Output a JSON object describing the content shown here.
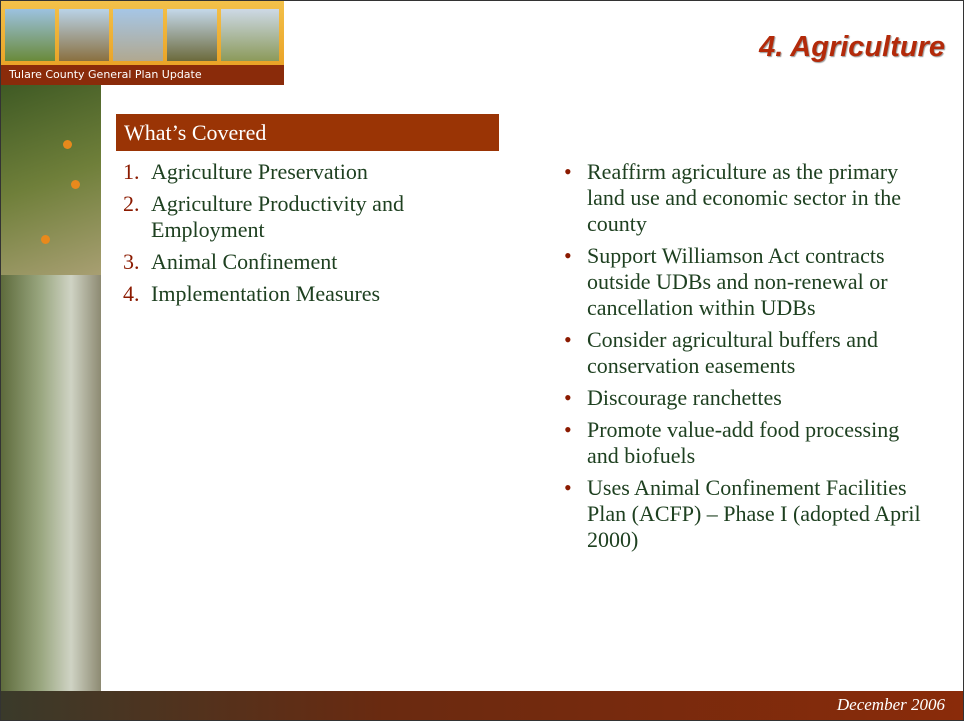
{
  "header": {
    "banner_text": "Tulare County General Plan Update",
    "title": "4. Agriculture"
  },
  "covered": {
    "heading": "What’s Covered",
    "items": [
      {
        "number": "1.",
        "text": "Agriculture Preservation"
      },
      {
        "number": "2.",
        "text": "Agriculture Productivity and Employment"
      },
      {
        "number": "3.",
        "text": "Animal Confinement"
      },
      {
        "number": "4.",
        "text": "Implementation Measures"
      }
    ]
  },
  "bullets": [
    "Reaffirm agriculture as the primary land use and economic sector in the county",
    "Support Williamson Act contracts outside UDBs and non-renewal or cancellation within UDBs",
    "Consider agricultural buffers and conservation easements",
    "Discourage ranchettes",
    "Promote value-add food processing and biofuels",
    "Uses Animal Confinement Facilities Plan (ACFP) – Phase I (adopted April 2000)"
  ],
  "footer": {
    "date": "December 2006"
  }
}
